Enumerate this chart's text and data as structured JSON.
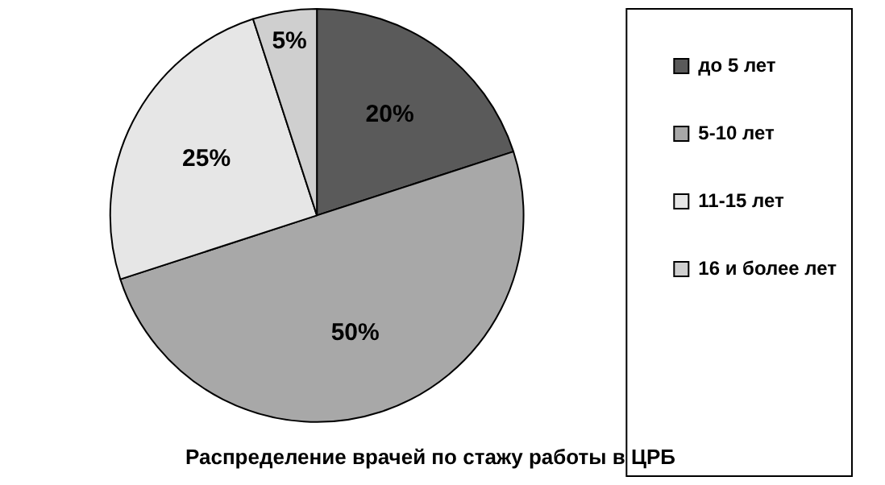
{
  "chart_data": {
    "type": "pie",
    "title": "Распределение врачей по стажу работы в ЦРБ",
    "categories": [
      "до 5 лет",
      "5-10 лет",
      "11-15 лет",
      "16 и более лет"
    ],
    "values": [
      20,
      50,
      25,
      5
    ],
    "value_labels": [
      "20%",
      "50%",
      "25%",
      "5%"
    ],
    "colors": [
      "#5a5a5a",
      "#a8a8a8",
      "#e6e6e6",
      "#cfcfcf"
    ],
    "legend": "right"
  }
}
